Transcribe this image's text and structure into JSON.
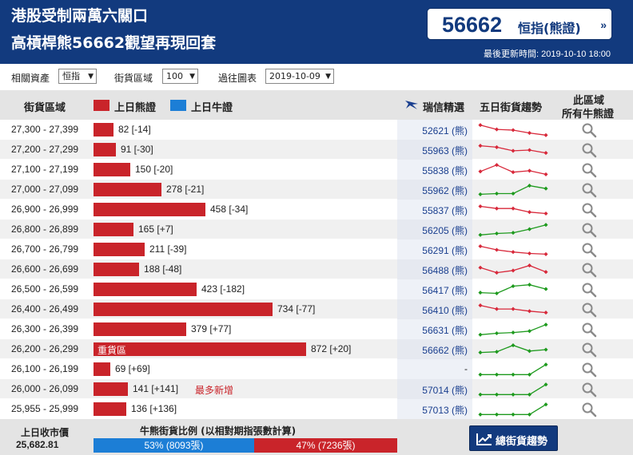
{
  "header": {
    "title_line1": "港股受制兩萬六關口",
    "title_line2": "高槓桿熊56662觀望再現回套",
    "index_value": "56662",
    "index_name": "恒指(熊證)",
    "index_arrow": "»",
    "updated_label": "最後更新時間:",
    "updated_time": "2019-10-10 18:00"
  },
  "filters": {
    "asset_label": "相關資產",
    "asset_value": "恒指",
    "zone_label": "街貨區域",
    "zone_value": "100",
    "past_label": "過往圖表",
    "past_value": "2019-10-09"
  },
  "table_header": {
    "zone": "街貨區域",
    "bear_legend": "上日熊證",
    "bull_legend": "上日牛證",
    "ubs_pick": "瑞信精選",
    "trend": "五日街貨趨勢",
    "all_line1": "此區域",
    "all_line2": "所有牛熊證"
  },
  "colors": {
    "bear": "#c9242a",
    "bull": "#1c7ed6",
    "header_bg": "#123a7e",
    "trend_up": "#1e9a1e",
    "trend_down": "#d8283a"
  },
  "rows": [
    {
      "range": "27,300 - 27,399",
      "value": 82,
      "label": "82 [-14]",
      "note": "",
      "ubs": "52621 (熊)",
      "logo": false,
      "trend": "down",
      "spark": [
        0.85,
        0.55,
        0.5,
        0.3,
        0.15
      ]
    },
    {
      "range": "27,200 - 27,299",
      "value": 91,
      "label": "91 [-30]",
      "note": "",
      "ubs": "55963 (熊)",
      "logo": false,
      "trend": "down",
      "spark": [
        0.8,
        0.7,
        0.45,
        0.5,
        0.3
      ]
    },
    {
      "range": "27,100 - 27,199",
      "value": 150,
      "label": "150 [-20]",
      "note": "",
      "ubs": "55838 (熊)",
      "logo": false,
      "trend": "down",
      "spark": [
        0.4,
        0.85,
        0.35,
        0.45,
        0.2
      ]
    },
    {
      "range": "27,000 - 27,099",
      "value": 278,
      "label": "278 [-21]",
      "note": "",
      "ubs": "55962 (熊)",
      "logo": false,
      "trend": "up",
      "spark": [
        0.2,
        0.25,
        0.25,
        0.8,
        0.6
      ]
    },
    {
      "range": "26,900 - 26,999",
      "value": 458,
      "label": "458 [-34]",
      "note": "",
      "ubs": "55837 (熊)",
      "logo": false,
      "trend": "down",
      "spark": [
        0.75,
        0.6,
        0.6,
        0.35,
        0.25
      ]
    },
    {
      "range": "26,800 - 26,899",
      "value": 165,
      "label": "165 [+7]",
      "note": "",
      "ubs": "56205 (熊)",
      "logo": false,
      "trend": "up",
      "spark": [
        0.15,
        0.25,
        0.3,
        0.55,
        0.85
      ]
    },
    {
      "range": "26,700 - 26,799",
      "value": 211,
      "label": "211 [-39]",
      "note": "",
      "ubs": "56291 (熊)",
      "logo": false,
      "trend": "down",
      "spark": [
        0.75,
        0.5,
        0.35,
        0.25,
        0.2
      ]
    },
    {
      "range": "26,600 - 26,699",
      "value": 188,
      "label": "188 [-48]",
      "note": "",
      "ubs": "56488 (熊)",
      "logo": false,
      "trend": "down",
      "spark": [
        0.65,
        0.3,
        0.45,
        0.8,
        0.35
      ]
    },
    {
      "range": "26,500 - 26,599",
      "value": 423,
      "label": "423 [-182]",
      "note": "",
      "ubs": "56417 (熊)",
      "logo": false,
      "trend": "up",
      "spark": [
        0.3,
        0.25,
        0.75,
        0.85,
        0.55
      ]
    },
    {
      "range": "26,400 - 26,499",
      "value": 734,
      "label": "734 [-77]",
      "note": "",
      "ubs": "56410 (熊)",
      "logo": false,
      "trend": "down",
      "spark": [
        0.8,
        0.55,
        0.55,
        0.4,
        0.3
      ]
    },
    {
      "range": "26,300 - 26,399",
      "value": 379,
      "label": "379 [+77]",
      "note": "",
      "ubs": "56631 (熊)",
      "logo": false,
      "trend": "up",
      "spark": [
        0.15,
        0.25,
        0.3,
        0.4,
        0.85
      ]
    },
    {
      "range": "26,200 - 26,299",
      "value": 872,
      "label": "872 [+20]",
      "note": "",
      "inbar": "重貨區",
      "ubs": "56662 (熊)",
      "logo": false,
      "trend": "up",
      "spark": [
        0.3,
        0.35,
        0.8,
        0.4,
        0.5
      ]
    },
    {
      "range": "26,100 - 26,199",
      "value": 69,
      "label": "69 [+69]",
      "note": "",
      "ubs": "-",
      "logo": false,
      "trend": "up",
      "spark": [
        0.15,
        0.15,
        0.15,
        0.15,
        0.85
      ]
    },
    {
      "range": "26,000 - 26,099",
      "value": 141,
      "label": "141 [+141]",
      "note": "最多新增",
      "ubs": "57014 (熊)",
      "logo": true,
      "trend": "up",
      "spark": [
        0.15,
        0.15,
        0.15,
        0.15,
        0.85
      ]
    },
    {
      "range": "25,955 - 25,999",
      "value": 136,
      "label": "136 [+136]",
      "note": "",
      "ubs": "57013 (熊)",
      "logo": false,
      "trend": "up",
      "spark": [
        0.15,
        0.15,
        0.15,
        0.15,
        0.85
      ]
    }
  ],
  "footer": {
    "close_label": "上日收市價",
    "close_value": "25,682.81",
    "ratio_title": "牛熊街貨比例 (以相對期指張數計算)",
    "bull_text": "53% (8093張)",
    "bear_text": "47% (7236張)",
    "bull_fraction": 0.53,
    "trend_button": "總街貨趨勢"
  }
}
